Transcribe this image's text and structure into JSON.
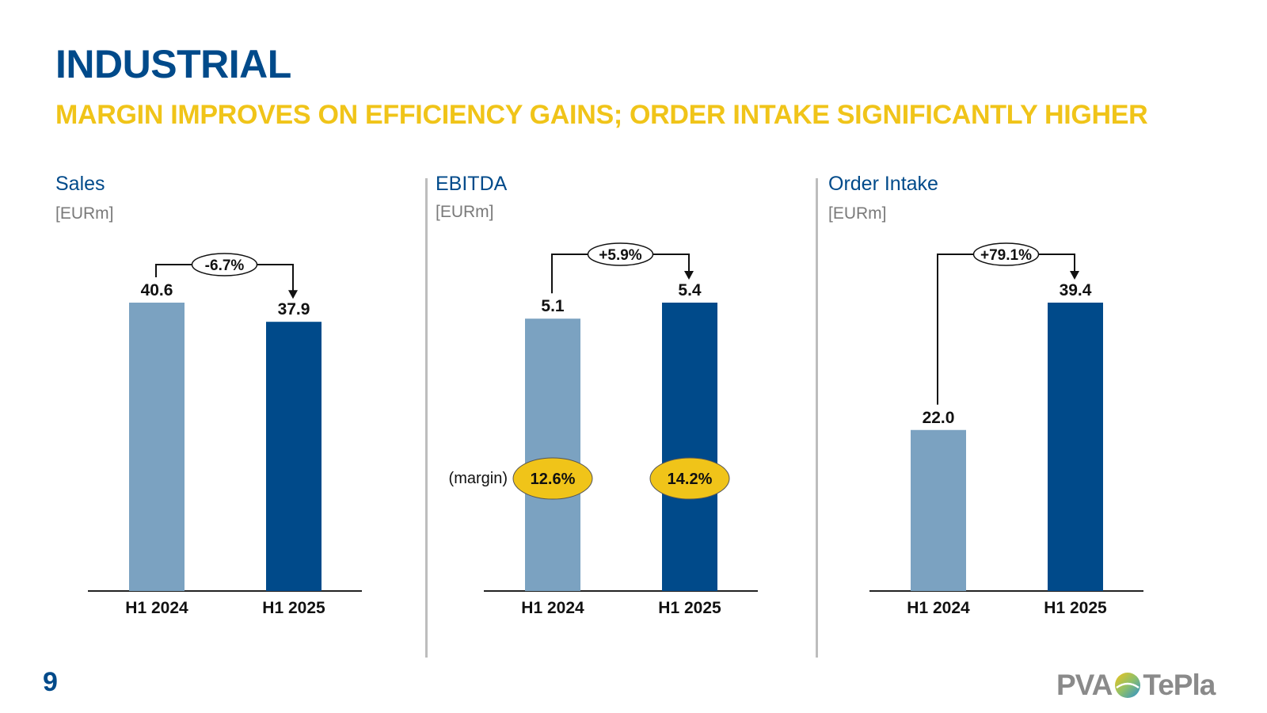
{
  "page": {
    "title": "INDUSTRIAL",
    "subtitle": "MARGIN IMPROVES ON EFFICIENCY GAINS; ORDER INTAKE SIGNIFICANTLY HIGHER",
    "page_number": "9",
    "logo": {
      "left": "PVA",
      "right": "TePla"
    }
  },
  "colors": {
    "title": "#004a8a",
    "subtitle": "#f0c419",
    "bar_prior": "#7ba2c1",
    "bar_current": "#004a8a",
    "margin_badge": "#f0c419"
  },
  "chart_data": [
    {
      "type": "bar",
      "title": "Sales",
      "unit": "[EURm]",
      "categories": [
        "H1 2024",
        "H1 2025"
      ],
      "values": [
        40.6,
        37.9
      ],
      "value_labels": [
        "40.6",
        "37.9"
      ],
      "change_label": "-6.7%",
      "ylim": [
        0,
        40.6
      ]
    },
    {
      "type": "bar",
      "title": "EBITDA",
      "unit": "[EURm]",
      "categories": [
        "H1 2024",
        "H1 2025"
      ],
      "values": [
        5.1,
        5.4
      ],
      "value_labels": [
        "5.1",
        "5.4"
      ],
      "change_label": "+5.9%",
      "margin_label": "(margin)",
      "margins": [
        "12.6%",
        "14.2%"
      ],
      "ylim": [
        0,
        5.4
      ]
    },
    {
      "type": "bar",
      "title": "Order Intake",
      "unit": "[EURm]",
      "categories": [
        "H1 2024",
        "H1 2025"
      ],
      "values": [
        22.0,
        39.4
      ],
      "value_labels": [
        "22.0",
        "39.4"
      ],
      "change_label": "+79.1%",
      "ylim": [
        0,
        39.4
      ]
    }
  ]
}
